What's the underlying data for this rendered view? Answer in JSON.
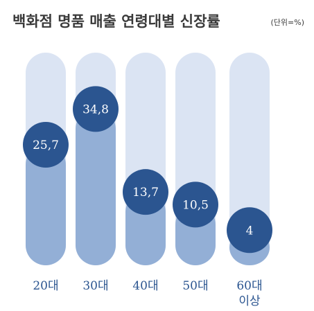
{
  "chart_data": {
    "type": "bar",
    "title": "백화점 명품 매출 연령대별 신장률",
    "unit_note": "(단위=%)",
    "categories": [
      [
        "20대"
      ],
      [
        "30대"
      ],
      [
        "40대"
      ],
      [
        "50대"
      ],
      [
        "60대",
        "이상"
      ]
    ],
    "values": [
      25.7,
      34.8,
      13.7,
      10.5,
      4
    ],
    "value_labels": [
      "25,7",
      "34,8",
      "13,7",
      "10,5",
      "4"
    ],
    "ylim": [
      0,
      45
    ],
    "grid": false,
    "legend": "none",
    "colors": {
      "track": "#dbe4f3",
      "fill": "#93afd6",
      "bubble": "#2b5590",
      "bubble_text": "#ffffff",
      "title": "#3a3a3a",
      "category_text": "#2b5590"
    }
  }
}
